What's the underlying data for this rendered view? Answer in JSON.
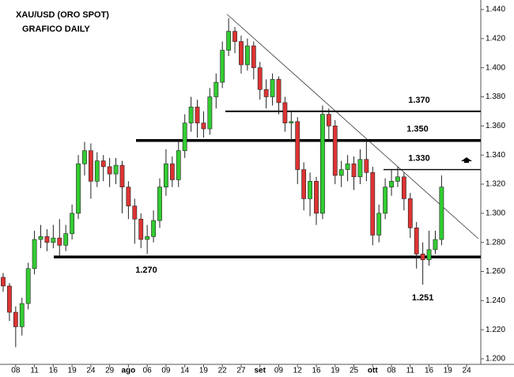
{
  "chart_data": {
    "type": "candlestick",
    "title": "XAU/USD (ORO SPOT)",
    "subtitle": "GRAFICO DAILY",
    "categories": [
      null,
      null,
      "08",
      null,
      null,
      "11",
      null,
      null,
      "16",
      null,
      null,
      "19",
      null,
      null,
      "24",
      null,
      null,
      "29",
      null,
      null,
      "ago",
      null,
      null,
      "06",
      null,
      null,
      "09",
      null,
      null,
      "14",
      null,
      null,
      "19",
      null,
      null,
      "22",
      null,
      null,
      "27",
      null,
      null,
      "set",
      null,
      null,
      "09",
      null,
      null,
      "12",
      null,
      null,
      "16",
      null,
      null,
      "19",
      null,
      null,
      "25",
      null,
      null,
      "ott",
      null,
      null,
      "08",
      null,
      null,
      "11",
      null,
      null,
      "16",
      null,
      null,
      "19",
      null,
      null,
      "24"
    ],
    "series": [
      {
        "up_color": "#33cc33",
        "down_color": "#dd3333",
        "edge_color": "#222222",
        "open": [
          1.256,
          1.25,
          1.232,
          1.222,
          1.238,
          1.262,
          1.282,
          1.284,
          1.28,
          1.283,
          1.278,
          1.286,
          1.3,
          1.334,
          1.343,
          1.322,
          1.336,
          1.332,
          1.327,
          1.333,
          1.318,
          1.305,
          1.296,
          1.282,
          1.284,
          1.295,
          1.318,
          1.334,
          1.323,
          1.343,
          1.362,
          1.373,
          1.362,
          1.358,
          1.38,
          1.39,
          1.412,
          1.425,
          1.418,
          1.402,
          1.415,
          1.4,
          1.385,
          1.38,
          1.392,
          1.376,
          1.362,
          1.363,
          1.33,
          1.31,
          1.322,
          1.3,
          1.368,
          1.36,
          1.326,
          1.33,
          1.334,
          1.325,
          1.337,
          1.328,
          1.285,
          1.3,
          1.318,
          1.322,
          1.325,
          1.31,
          1.29,
          1.272,
          1.268,
          1.275,
          1.282,
          null,
          null,
          null,
          null
        ],
        "high": [
          1.259,
          1.252,
          1.236,
          1.242,
          1.266,
          1.288,
          1.292,
          1.289,
          1.292,
          1.296,
          1.292,
          1.306,
          1.34,
          1.349,
          1.348,
          1.342,
          1.34,
          1.338,
          1.338,
          1.336,
          1.322,
          1.31,
          1.3,
          1.292,
          1.302,
          1.324,
          1.344,
          1.339,
          1.349,
          1.368,
          1.38,
          1.378,
          1.37,
          1.386,
          1.396,
          1.418,
          1.434,
          1.428,
          1.422,
          1.42,
          1.418,
          1.404,
          1.392,
          1.396,
          1.394,
          1.38,
          1.37,
          1.366,
          1.335,
          1.328,
          1.325,
          1.374,
          1.372,
          1.364,
          1.336,
          1.34,
          1.339,
          1.344,
          1.35,
          1.332,
          1.306,
          1.324,
          1.33,
          1.332,
          1.328,
          1.314,
          1.294,
          1.28,
          1.288,
          1.288,
          1.326,
          null,
          null,
          null,
          null
        ],
        "low": [
          1.246,
          1.226,
          1.208,
          1.216,
          1.234,
          1.258,
          1.276,
          1.274,
          1.276,
          1.271,
          1.274,
          1.282,
          1.296,
          1.326,
          1.31,
          1.318,
          1.322,
          1.318,
          1.32,
          1.3,
          1.296,
          1.279,
          1.276,
          1.272,
          1.28,
          1.29,
          1.312,
          1.318,
          1.318,
          1.338,
          1.356,
          1.352,
          1.352,
          1.354,
          1.372,
          1.386,
          1.408,
          1.41,
          1.396,
          1.398,
          1.392,
          1.378,
          1.372,
          1.374,
          1.368,
          1.356,
          1.35,
          1.32,
          1.302,
          1.298,
          1.292,
          1.296,
          1.35,
          1.32,
          1.318,
          1.322,
          1.316,
          1.32,
          1.322,
          1.278,
          1.28,
          1.296,
          1.312,
          1.318,
          1.302,
          1.283,
          1.262,
          1.251,
          1.264,
          1.272,
          1.278,
          null,
          null,
          null,
          null
        ],
        "close": [
          1.25,
          1.232,
          1.222,
          1.238,
          1.262,
          1.282,
          1.284,
          1.28,
          1.283,
          1.278,
          1.286,
          1.3,
          1.334,
          1.343,
          1.322,
          1.336,
          1.332,
          1.327,
          1.333,
          1.318,
          1.305,
          1.296,
          1.282,
          1.284,
          1.295,
          1.318,
          1.334,
          1.323,
          1.343,
          1.362,
          1.373,
          1.362,
          1.358,
          1.38,
          1.39,
          1.412,
          1.425,
          1.418,
          1.402,
          1.415,
          1.4,
          1.385,
          1.38,
          1.392,
          1.376,
          1.362,
          1.363,
          1.33,
          1.31,
          1.322,
          1.3,
          1.368,
          1.36,
          1.326,
          1.33,
          1.334,
          1.325,
          1.337,
          1.328,
          1.285,
          1.3,
          1.318,
          1.322,
          1.325,
          1.31,
          1.29,
          1.272,
          1.268,
          1.275,
          1.282,
          1.318,
          null,
          null,
          null,
          null
        ]
      }
    ],
    "ylim": [
      1.2,
      1.44
    ],
    "yticks": [
      {
        "value": 1.2,
        "label": "1.200"
      },
      {
        "value": 1.22,
        "label": "1.220"
      },
      {
        "value": 1.24,
        "label": "1.240"
      },
      {
        "value": 1.26,
        "label": "1.260"
      },
      {
        "value": 1.28,
        "label": "1.280"
      },
      {
        "value": 1.3,
        "label": "1.300"
      },
      {
        "value": 1.32,
        "label": "1.320"
      },
      {
        "value": 1.34,
        "label": "1.340"
      },
      {
        "value": 1.36,
        "label": "1.360"
      },
      {
        "value": 1.38,
        "label": "1.380"
      },
      {
        "value": 1.4,
        "label": "1.400"
      },
      {
        "value": 1.42,
        "label": "1.420"
      },
      {
        "value": 1.44,
        "label": "1.440"
      }
    ],
    "levels": [
      {
        "value": 1.37,
        "label": "1.370"
      },
      {
        "value": 1.35,
        "label": "1.350"
      },
      {
        "value": 1.33,
        "label": "1.330"
      },
      {
        "value": 1.27,
        "label": "1.270"
      }
    ],
    "low_annotation": {
      "value": 1.251,
      "label": "1.251"
    }
  }
}
